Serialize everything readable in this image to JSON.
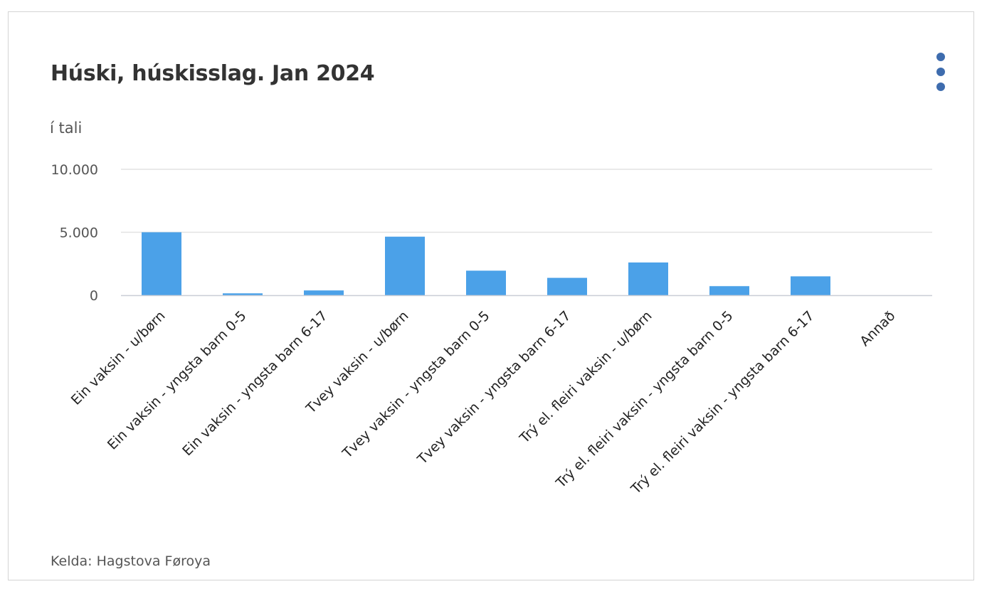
{
  "header": {
    "title": "Húski, húskisslag. Jan 2024",
    "menu_icon": "more-vertical-icon"
  },
  "footer": {
    "source": "Kelda: Hagstova Føroya"
  },
  "colors": {
    "bar": "#4ba1e8",
    "grid": "#e2e2e2",
    "axis": "#c9cdd6",
    "menu": "#3e6cae"
  },
  "chart_data": {
    "type": "bar",
    "title": "Húski, húskisslag. Jan 2024",
    "ylabel": "í tali",
    "xlabel": "",
    "ylim": [
      0,
      10000
    ],
    "yticks": [
      0,
      5000,
      10000
    ],
    "ytick_labels": [
      "0",
      "5.000",
      "10.000"
    ],
    "grid": true,
    "categories": [
      "Ein vaksin - u/børn",
      "Ein vaksin - yngsta barn 0-5",
      "Ein vaksin - yngsta barn 6-17",
      "Tvey vaksin - u/børn",
      "Tvey vaksin - yngsta barn 0-5",
      "Tvey vaksin - yngsta barn 6-17",
      "Trý el. fleiri vaksin - u/børn",
      "Trý el. fleiri vaksin - yngsta barn 0-5",
      "Trý el. fleiri vaksin - yngsta barn 6-17",
      "Annað"
    ],
    "values": [
      5000,
      150,
      380,
      4650,
      1950,
      1380,
      2600,
      720,
      1500,
      0
    ]
  }
}
